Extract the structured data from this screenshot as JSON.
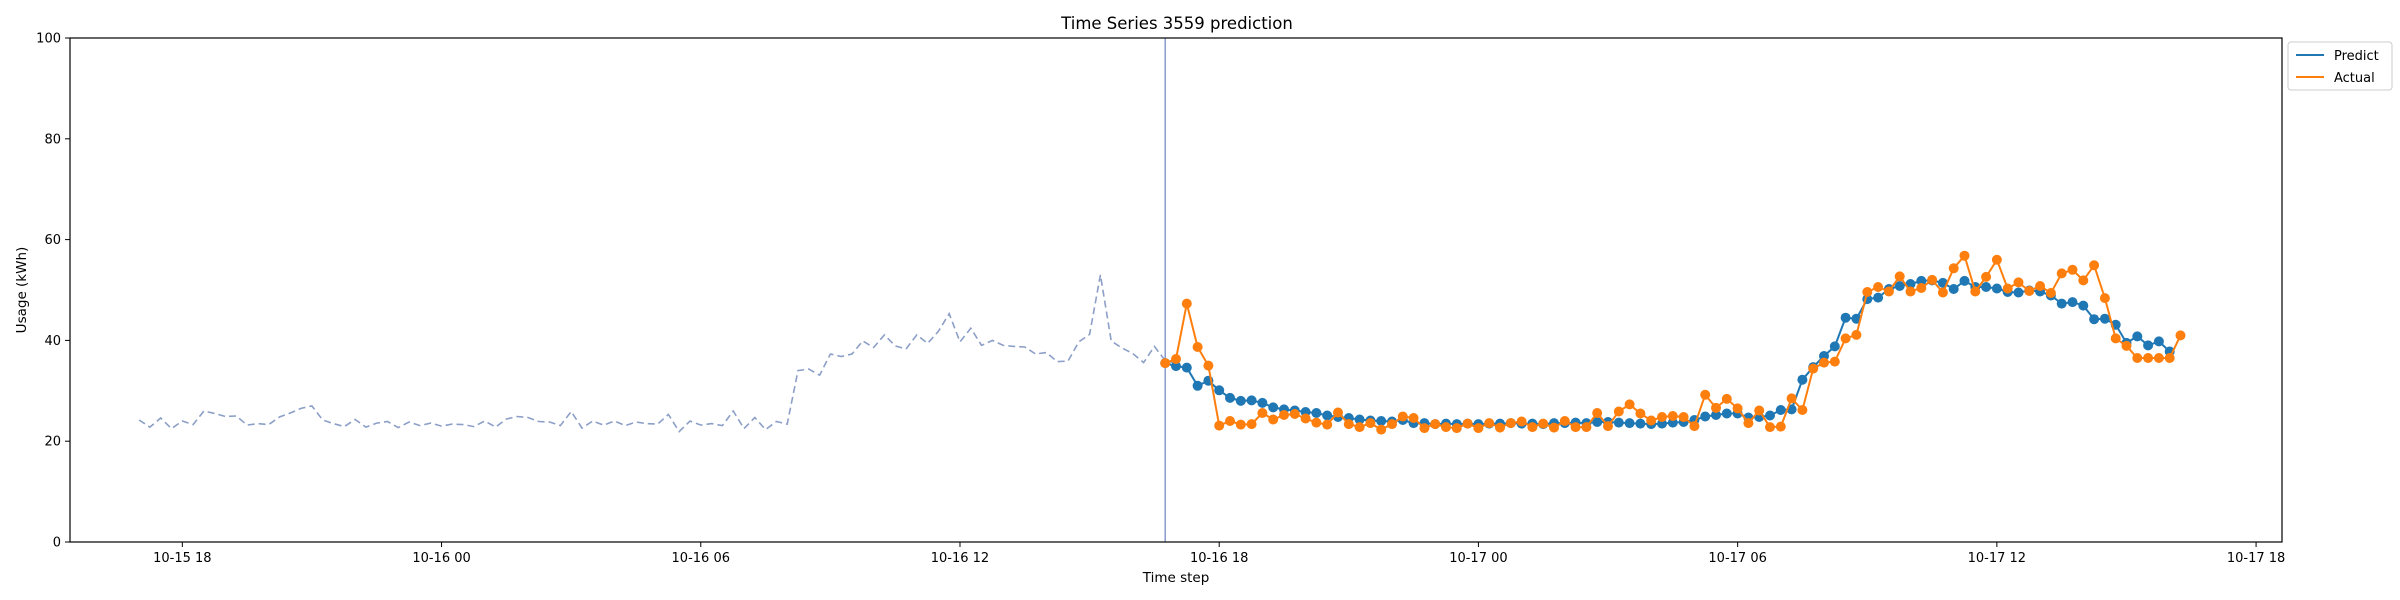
{
  "chart_data": {
    "type": "line",
    "title": "Time Series 3559 prediction",
    "xlabel": "Time step",
    "ylabel": "Usage (kWh)",
    "ylim": [
      0,
      100
    ],
    "yticks": [
      0,
      20,
      40,
      60,
      80,
      100
    ],
    "xlim": [
      "2021-10-15 15:24",
      "2021-10-17 18:36"
    ],
    "xticks": [
      {
        "value": "2021-10-15 18:00",
        "label": "10-15 18"
      },
      {
        "value": "2021-10-16 00:00",
        "label": "10-16 00"
      },
      {
        "value": "2021-10-16 06:00",
        "label": "10-16 06"
      },
      {
        "value": "2021-10-16 12:00",
        "label": "10-16 12"
      },
      {
        "value": "2021-10-16 18:00",
        "label": "10-16 18"
      },
      {
        "value": "2021-10-17 00:00",
        "label": "10-17 00"
      },
      {
        "value": "2021-10-17 06:00",
        "label": "10-17 06"
      },
      {
        "value": "2021-10-17 12:00",
        "label": "10-17 12"
      },
      {
        "value": "2021-10-17 18:00",
        "label": "10-17 18"
      }
    ],
    "grid": false,
    "legend": "upper right, outside axes",
    "forecast_start": "2021-10-16 16:45",
    "colors": {
      "history": "#8c9fc7",
      "predict": "#1f77b4",
      "actual": "#ff7f0e",
      "divider": "#7f93c8"
    },
    "history": {
      "start": "2021-10-15 17:00",
      "step_minutes": 15,
      "values": [
        24.2,
        22.8,
        24.6,
        22.5,
        24.0,
        23.3,
        26.0,
        25.5,
        24.9,
        25.0,
        23.2,
        23.5,
        23.3,
        24.8,
        25.6,
        26.5,
        27.0,
        24.2,
        23.5,
        22.9,
        24.3,
        22.8,
        23.6,
        23.9,
        22.7,
        23.8,
        23.1,
        23.6,
        23.0,
        23.4,
        23.3,
        22.9,
        24.0,
        22.8,
        24.4,
        24.9,
        24.7,
        23.9,
        23.8,
        23.1,
        25.9,
        22.6,
        24.0,
        23.2,
        24.0,
        23.1,
        23.8,
        23.5,
        23.4,
        25.3,
        21.9,
        24.0,
        23.2,
        23.5,
        23.1,
        26.0,
        22.5,
        24.7,
        22.3,
        23.9,
        23.4,
        34.0,
        34.3,
        33.1,
        37.3,
        36.8,
        37.3,
        39.9,
        38.6,
        41.1,
        38.9,
        38.3,
        41.1,
        39.4,
        41.8,
        45.3,
        39.7,
        42.4,
        39.0,
        40.0,
        39.0,
        38.8,
        38.7,
        37.3,
        37.6,
        35.8,
        35.9,
        39.7,
        41.2,
        53.0,
        39.9,
        38.5,
        37.4,
        35.6,
        38.8,
        36.0,
        35.5
      ]
    },
    "series": [
      {
        "name": "Predict",
        "start": "2021-10-16 16:45",
        "step_minutes": 15,
        "values": [
          35.5,
          34.9,
          34.6,
          31.0,
          32.0,
          30.1,
          28.6,
          28.0,
          28.1,
          27.6,
          26.7,
          26.3,
          26.1,
          25.8,
          25.6,
          25.1,
          24.8,
          24.6,
          24.3,
          24.1,
          24.0,
          23.9,
          24.2,
          23.6,
          23.6,
          23.4,
          23.5,
          23.4,
          23.5,
          23.4,
          23.5,
          23.5,
          23.6,
          23.5,
          23.5,
          23.4,
          23.6,
          23.6,
          23.7,
          23.6,
          23.8,
          23.8,
          23.7,
          23.6,
          23.5,
          23.4,
          23.5,
          23.7,
          23.8,
          24.2,
          24.9,
          25.2,
          25.5,
          25.5,
          24.7,
          24.8,
          25.1,
          26.2,
          26.3,
          32.2,
          34.7,
          36.9,
          38.8,
          44.5,
          44.3,
          48.2,
          48.5,
          50.2,
          50.8,
          51.2,
          51.8,
          51.9,
          51.4,
          50.2,
          51.8,
          50.6,
          50.6,
          50.3,
          49.6,
          49.5,
          49.9,
          49.7,
          48.9,
          47.3,
          47.6,
          46.9,
          44.2,
          44.3,
          43.1,
          39.5,
          40.8,
          39.0,
          39.8,
          37.8
        ]
      },
      {
        "name": "Actual",
        "start": "2021-10-16 16:45",
        "step_minutes": 15,
        "values": [
          35.5,
          36.3,
          47.3,
          38.7,
          35.0,
          23.1,
          24.0,
          23.3,
          23.4,
          25.6,
          24.3,
          25.2,
          25.4,
          24.5,
          23.7,
          23.3,
          25.7,
          23.4,
          22.8,
          23.6,
          22.3,
          23.4,
          24.9,
          24.6,
          22.6,
          23.4,
          22.8,
          22.6,
          23.5,
          22.6,
          23.6,
          22.7,
          23.6,
          23.9,
          22.8,
          23.5,
          22.7,
          24.0,
          22.8,
          22.8,
          25.6,
          23.0,
          25.9,
          27.3,
          25.5,
          24.1,
          24.8,
          25.0,
          24.8,
          23.0,
          29.2,
          26.6,
          28.4,
          26.5,
          23.6,
          26.1,
          22.8,
          22.9,
          28.5,
          26.2,
          34.4,
          35.6,
          35.8,
          40.4,
          41.1,
          49.6,
          50.6,
          49.7,
          52.7,
          49.7,
          50.4,
          52.0,
          49.5,
          54.3,
          56.8,
          49.7,
          52.6,
          56.0,
          50.3,
          51.5,
          49.8,
          50.8,
          49.4,
          53.3,
          54.0,
          51.9,
          54.9,
          48.4,
          40.4,
          38.9,
          36.5,
          36.5,
          36.5,
          36.5,
          41.0
        ]
      }
    ]
  }
}
